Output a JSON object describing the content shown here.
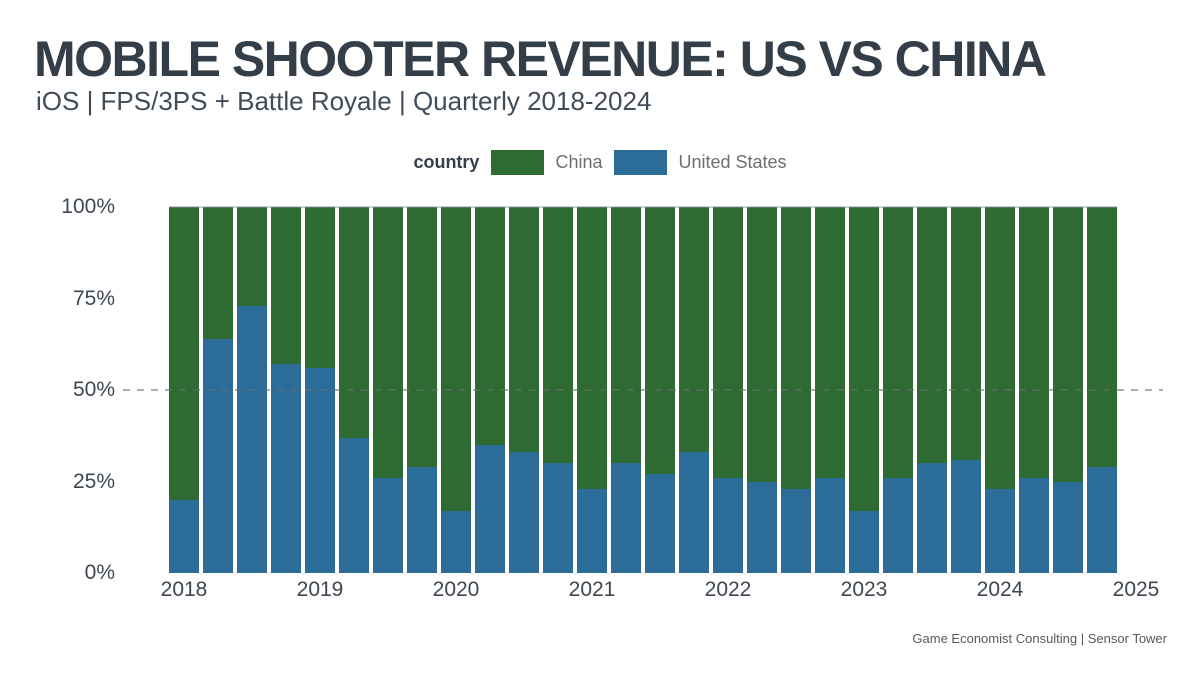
{
  "header": {
    "title": "MOBILE SHOOTER REVENUE: US VS CHINA",
    "subtitle": "iOS | FPS/3PS + Battle Royale | Quarterly 2018-2024"
  },
  "legend": {
    "title": "country",
    "items": [
      {
        "label": "China",
        "color": "#2E6B33"
      },
      {
        "label": "United States",
        "color": "#2B6C99"
      }
    ]
  },
  "footer": {
    "source": "Game Economist Consulting | Sensor Tower"
  },
  "colors": {
    "china_green": "#2E6B33",
    "us_blue": "#2B6C99",
    "title_text": "#333E48",
    "axis_text": "#3E4751",
    "reference_line": "#9aa0a6"
  },
  "chart_data": {
    "type": "bar",
    "stacking": "percent",
    "title": "MOBILE SHOOTER REVENUE: US VS CHINA",
    "subtitle": "iOS | FPS/3PS + Battle Royale | Quarterly 2018-2024",
    "x": [
      "2018 Q1",
      "2018 Q2",
      "2018 Q3",
      "2018 Q4",
      "2019 Q1",
      "2019 Q2",
      "2019 Q3",
      "2019 Q4",
      "2020 Q1",
      "2020 Q2",
      "2020 Q3",
      "2020 Q4",
      "2021 Q1",
      "2021 Q2",
      "2021 Q3",
      "2021 Q4",
      "2022 Q1",
      "2022 Q2",
      "2022 Q3",
      "2022 Q4",
      "2023 Q1",
      "2023 Q2",
      "2023 Q3",
      "2023 Q4",
      "2024 Q1",
      "2024 Q2",
      "2024 Q3",
      "2024 Q4"
    ],
    "series": [
      {
        "name": "United States",
        "color": "#2B6C99",
        "values": [
          20,
          64,
          73,
          57,
          56,
          37,
          26,
          29,
          17,
          35,
          33,
          30,
          23,
          30,
          27,
          33,
          26,
          25,
          23,
          26,
          17,
          26,
          30,
          31,
          23,
          26,
          25,
          29
        ]
      },
      {
        "name": "China",
        "color": "#2E6B33",
        "values": [
          80,
          36,
          27,
          43,
          44,
          63,
          74,
          71,
          83,
          65,
          67,
          70,
          77,
          70,
          73,
          67,
          74,
          75,
          77,
          74,
          83,
          74,
          70,
          69,
          77,
          74,
          75,
          71
        ]
      }
    ],
    "y_ticks": [
      "0%",
      "25%",
      "50%",
      "75%",
      "100%"
    ],
    "x_ticks": [
      "2018",
      "2019",
      "2020",
      "2021",
      "2022",
      "2023",
      "2024",
      "2025"
    ],
    "ylim": [
      0,
      100
    ],
    "reference_line_percent": 50,
    "grid": "off",
    "legend_position": "top-center"
  }
}
